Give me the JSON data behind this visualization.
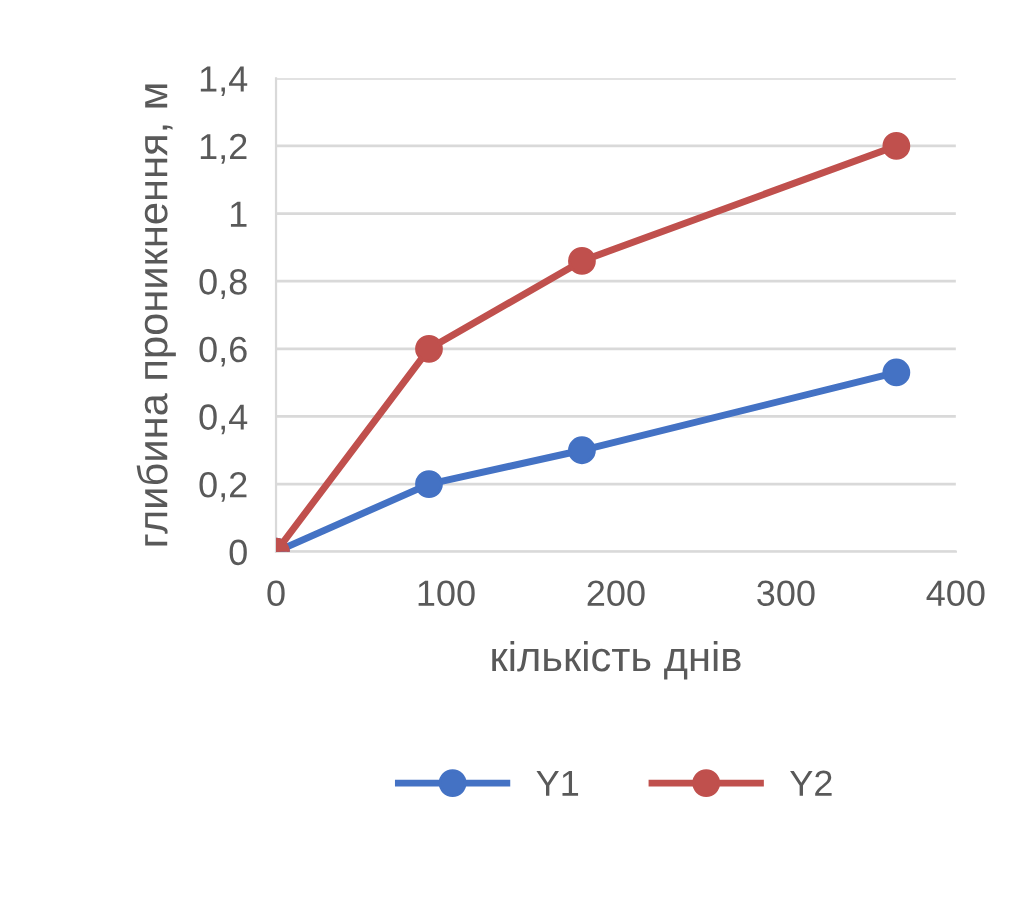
{
  "chart_data": {
    "type": "line",
    "xlabel": "кількість днів",
    "ylabel": "глибина проникнення, м",
    "series": [
      {
        "name": "Y1",
        "color": "#4472c4",
        "x": [
          0,
          90,
          180,
          365
        ],
        "values": [
          0,
          0.2,
          0.3,
          0.53
        ]
      },
      {
        "name": "Y2",
        "color": "#c0504d",
        "x": [
          0,
          90,
          180,
          365
        ],
        "values": [
          0,
          0.6,
          0.86,
          1.2
        ]
      }
    ],
    "xlim": [
      0,
      400
    ],
    "xticks": [
      0,
      100,
      200,
      300,
      400
    ],
    "ylim": [
      0,
      1.4
    ],
    "yticks": [
      0,
      {
        "value": 0.2,
        "label": "0,2"
      },
      {
        "value": 0.4,
        "label": "0,4"
      },
      {
        "value": 0.6,
        "label": "0,6"
      },
      {
        "value": 0.8,
        "label": "0,8"
      },
      1,
      {
        "value": 1.2,
        "label": "1,2"
      },
      {
        "value": 1.4,
        "label": "1,4"
      }
    ],
    "grid": "y",
    "legend": "bottom",
    "marker": "circle",
    "line_style": "solid"
  }
}
